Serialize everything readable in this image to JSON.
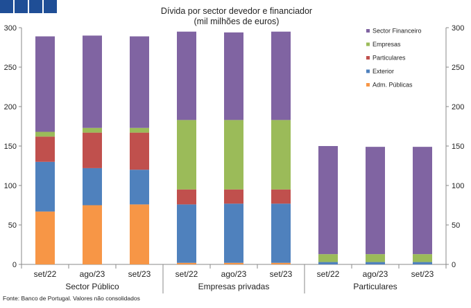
{
  "chart_data": {
    "type": "bar",
    "stacked": true,
    "title": "Dívida por sector devedor e financiador",
    "subtitle": "(mil milhões de euros)",
    "categories": [
      "set/22",
      "ago/23",
      "set/23",
      "set/22",
      "ago/23",
      "set/23",
      "set/22",
      "ago/23",
      "set/23"
    ],
    "groups": [
      {
        "label": "Sector Público",
        "start": 0,
        "end": 2
      },
      {
        "label": "Empresas privadas",
        "start": 3,
        "end": 5
      },
      {
        "label": "Particulares",
        "start": 6,
        "end": 8
      }
    ],
    "series": [
      {
        "name": "Adm. Públicas",
        "color": "#f79646",
        "values": [
          67,
          75,
          76,
          2,
          2,
          2,
          0,
          0,
          0
        ]
      },
      {
        "name": "Exterior",
        "color": "#4f81bd",
        "values": [
          63,
          47,
          44,
          74,
          75,
          75,
          3,
          3,
          3
        ]
      },
      {
        "name": "Particulares",
        "color": "#c0504d",
        "values": [
          32,
          45,
          47,
          19,
          18,
          18,
          0,
          0,
          0
        ]
      },
      {
        "name": "Empresas",
        "color": "#9bbb59",
        "values": [
          6,
          6,
          6,
          88,
          88,
          88,
          10,
          10,
          10
        ]
      },
      {
        "name": "Sector Financeiro",
        "color": "#8064a2",
        "values": [
          121,
          117,
          116,
          112,
          111,
          112,
          137,
          136,
          136
        ]
      }
    ],
    "legend_order": [
      "Sector Financeiro",
      "Empresas",
      "Particulares",
      "Exterior",
      "Adm. Públicas"
    ],
    "ylim": [
      0,
      300
    ],
    "yticks": [
      0,
      50,
      100,
      150,
      200,
      250,
      300
    ],
    "y2ticks": [
      0,
      50,
      100,
      150,
      200,
      250,
      300
    ],
    "grid": false,
    "legend_position": "top-right"
  },
  "source": "Fonte: Banco de Portugal. Valores não consolidados"
}
